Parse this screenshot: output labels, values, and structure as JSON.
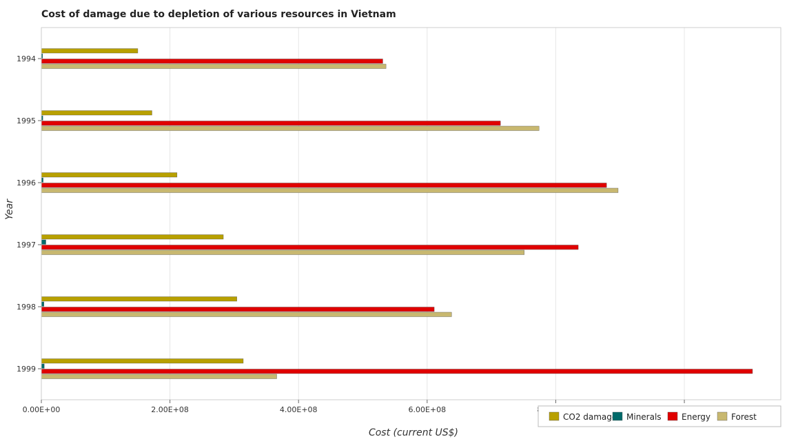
{
  "chart_data": {
    "type": "bar",
    "orientation": "horizontal",
    "title": "Cost of damage due to depletion of various resources in Vietnam",
    "xlabel": "Cost (current US$)",
    "ylabel": "Year",
    "categories": [
      "1994",
      "1995",
      "1996",
      "1997",
      "1998",
      "1999"
    ],
    "series": [
      {
        "name": "CO2 damage",
        "color": "#b8a000",
        "values": [
          150000000,
          172000000,
          211000000,
          283000000,
          304000000,
          314000000
        ]
      },
      {
        "name": "Minerals",
        "color": "#006a6a",
        "values": [
          2000000,
          2300000,
          2800000,
          7000000,
          4000000,
          4500000
        ]
      },
      {
        "name": "Energy",
        "color": "#e00000",
        "values": [
          531000000,
          714000000,
          879000000,
          835000000,
          611000000,
          1106000000
        ]
      },
      {
        "name": "Forest",
        "color": "#c8b870",
        "values": [
          536000000,
          774000000,
          897000000,
          751000000,
          638000000,
          366000000
        ]
      }
    ],
    "xticks": [
      {
        "value": 0,
        "label": "0.00E+00"
      },
      {
        "value": 200000000,
        "label": "2.00E+08"
      },
      {
        "value": 400000000,
        "label": "4.00E+08"
      },
      {
        "value": 600000000,
        "label": "6.00E+08"
      },
      {
        "value": 800000000,
        "label": "8.00E+08"
      },
      {
        "value": 1000000000,
        "label": "1.00E+09"
      }
    ],
    "xlim": [
      0,
      1150000000
    ],
    "grid": "x",
    "legend_position": "bottom-right"
  }
}
